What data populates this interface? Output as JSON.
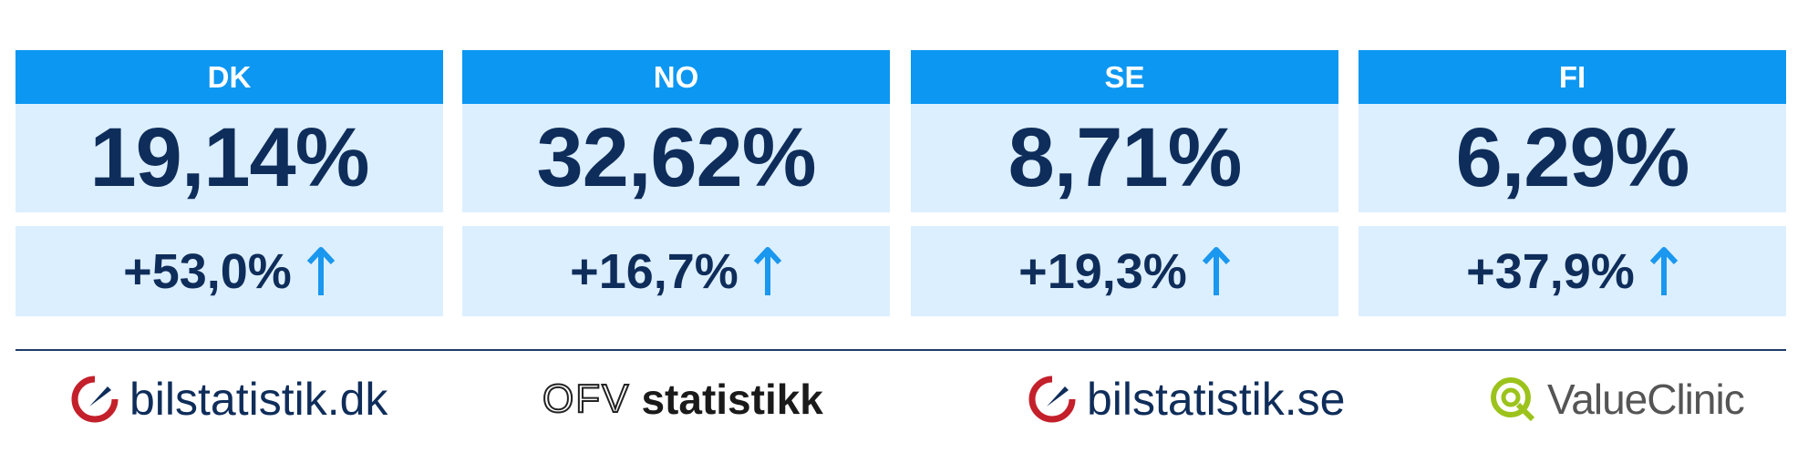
{
  "cards": [
    {
      "country": "DK",
      "share": "19,14%",
      "change": "+53,0%"
    },
    {
      "country": "NO",
      "share": "32,62%",
      "change": "+16,7%"
    },
    {
      "country": "SE",
      "share": "8,71%",
      "change": "+19,3%"
    },
    {
      "country": "FI",
      "share": "6,29%",
      "change": "+37,9%"
    }
  ],
  "logos": {
    "dk": "bilstatistik.dk",
    "ofv_mark": "OFV",
    "ofv": "statistikk",
    "se": "bilstatistik.se",
    "fi": "ValueClinic"
  }
}
